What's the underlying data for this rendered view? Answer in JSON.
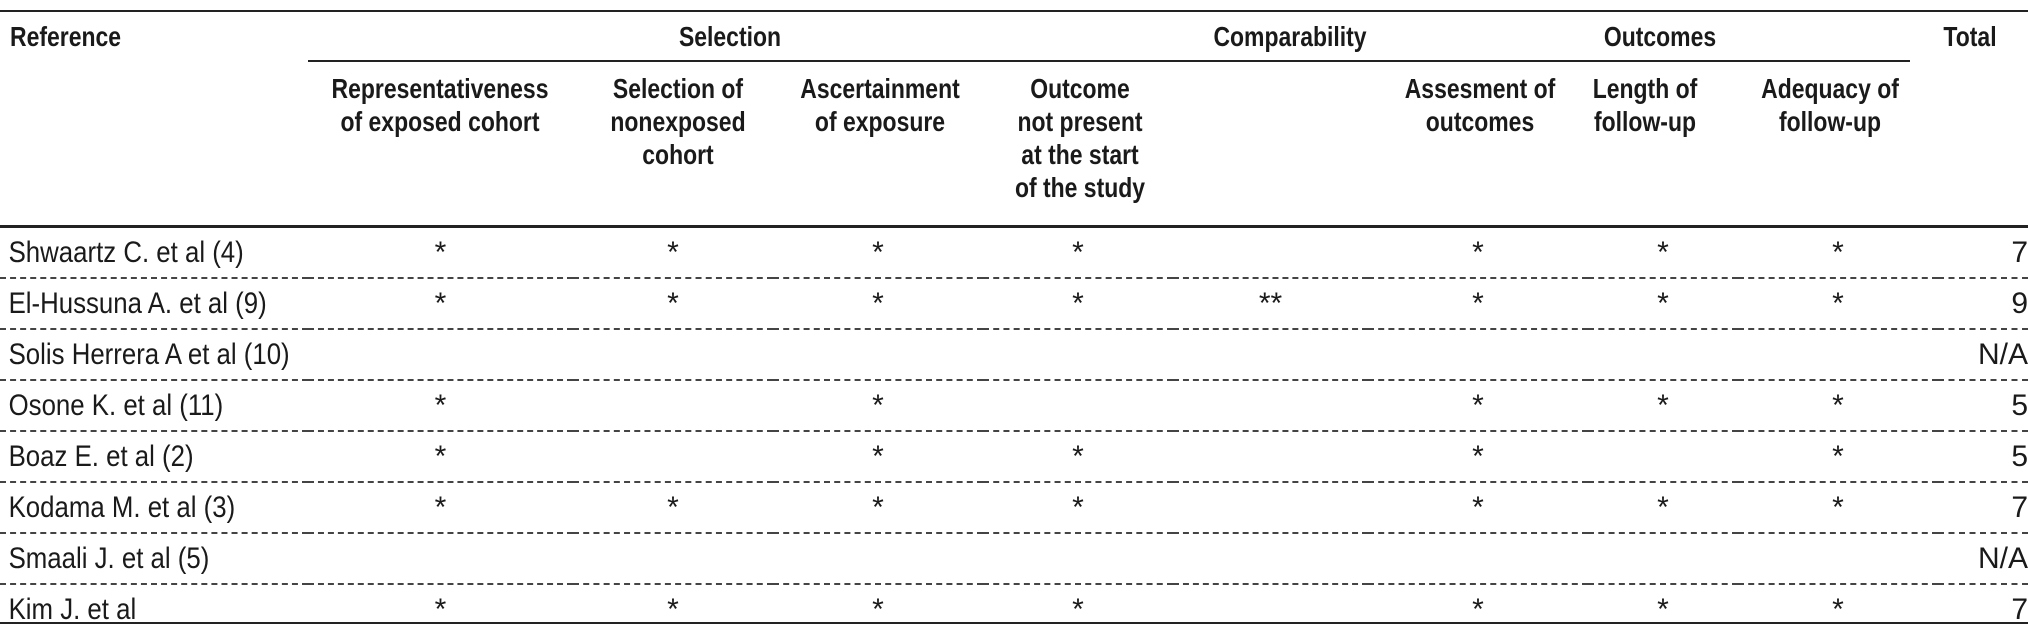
{
  "header": {
    "reference": "Reference",
    "groups": {
      "selection": "Selection",
      "comparability": "Comparability",
      "outcomes": "Outcomes"
    },
    "total": "Total",
    "subheaders": {
      "representativeness": "Representativeness\nof exposed cohort",
      "nonexposed": "Selection of\nnonexposed\ncohort",
      "ascertainment": "Ascertainment\nof exposure",
      "outcome_not_present": "Outcome\nnot present\nat the start\nof the study",
      "assessment": "Assesment of\noutcomes",
      "length": "Length of\nfollow-up",
      "adequacy": "Adequacy of\nfollow-up"
    }
  },
  "rows": [
    {
      "ref": "Shwaartz C. et al (4)",
      "c1": "*",
      "c2": "*",
      "c3": "*",
      "c4": "*",
      "c5": "",
      "c6": "*",
      "c7": "*",
      "c8": "*",
      "total": "7"
    },
    {
      "ref": "El-Hussuna A. et al (9)",
      "c1": "*",
      "c2": "*",
      "c3": "*",
      "c4": "*",
      "c5": "**",
      "c6": "*",
      "c7": "*",
      "c8": "*",
      "total": "9"
    },
    {
      "ref": "Solis Herrera A et al (10)",
      "c1": "",
      "c2": "",
      "c3": "",
      "c4": "",
      "c5": "",
      "c6": "",
      "c7": "",
      "c8": "",
      "total": "N/A"
    },
    {
      "ref": "Osone K. et al (11)",
      "c1": "*",
      "c2": "",
      "c3": "*",
      "c4": "",
      "c5": "",
      "c6": "*",
      "c7": "*",
      "c8": "*",
      "total": "5"
    },
    {
      "ref": "Boaz E. et al (2)",
      "c1": "*",
      "c2": "",
      "c3": "*",
      "c4": "*",
      "c5": "",
      "c6": "*",
      "c7": "",
      "c8": "*",
      "total": "5"
    },
    {
      "ref": "Kodama M. et al (3)",
      "c1": "*",
      "c2": "*",
      "c3": "*",
      "c4": "*",
      "c5": "",
      "c6": "*",
      "c7": "*",
      "c8": "*",
      "total": "7"
    },
    {
      "ref": "Smaali J. et al (5)",
      "c1": "",
      "c2": "",
      "c3": "",
      "c4": "",
      "c5": "",
      "c6": "",
      "c7": "",
      "c8": "",
      "total": "N/A"
    },
    {
      "ref": "Kim J. et al",
      "c1": "*",
      "c2": "*",
      "c3": "*",
      "c4": "*",
      "c5": "",
      "c6": "*",
      "c7": "*",
      "c8": "*",
      "total": "7"
    }
  ]
}
